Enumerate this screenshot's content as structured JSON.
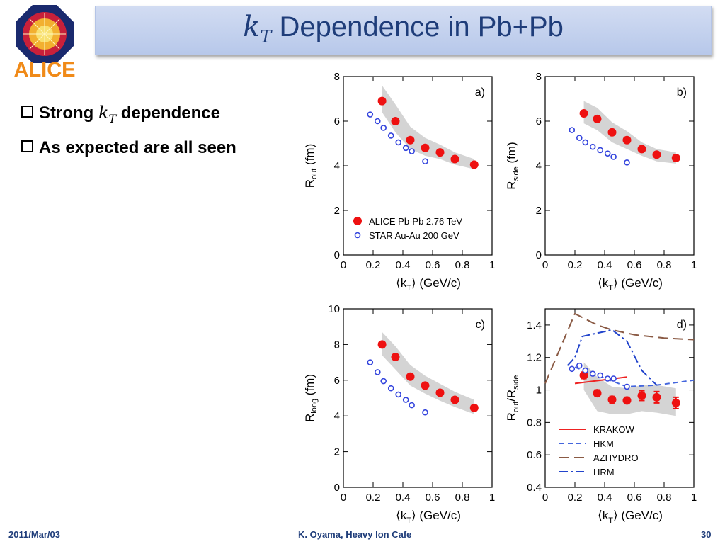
{
  "slide": {
    "title_var": "k",
    "title_sub": "T",
    "title_rest": " Dependence in Pb+Pb",
    "logo_text": "ALICE",
    "bullets": [
      {
        "pre": "Strong ",
        "var": "k",
        "sub": "T",
        "post": " dependence"
      },
      {
        "pre": "As expected are all seen",
        "var": "",
        "sub": "",
        "post": ""
      }
    ],
    "footer": {
      "date": "2011/Mar/03",
      "author": "K. Oyama, Heavy Ion Cafe",
      "page": "30"
    }
  },
  "chart_data": [
    {
      "type": "scatter",
      "panel": "a)",
      "ylabel": "R_out (fm)",
      "xlabel": "⟨k_T⟩ (GeV/c)",
      "xlim": [
        0,
        1
      ],
      "ylim": [
        0,
        8
      ],
      "x_ticks": [
        "0",
        "0.2",
        "0.4",
        "0.6",
        "0.8",
        "1"
      ],
      "y_ticks": [
        "0",
        "2",
        "4",
        "6",
        "8"
      ],
      "series": [
        {
          "name": "ALICE Pb-Pb 2.76 TeV",
          "marker": "filled-circle",
          "color": "#ee1111",
          "x": [
            0.26,
            0.35,
            0.45,
            0.55,
            0.65,
            0.75,
            0.88
          ],
          "y": [
            6.9,
            6.0,
            5.15,
            4.8,
            4.6,
            4.3,
            4.05
          ]
        },
        {
          "name": "STAR Au-Au 200 GeV",
          "marker": "open-circle",
          "color": "#3344dd",
          "x": [
            0.18,
            0.23,
            0.27,
            0.32,
            0.37,
            0.42,
            0.46,
            0.55
          ],
          "y": [
            6.3,
            6.0,
            5.7,
            5.35,
            5.05,
            4.8,
            4.65,
            4.2
          ]
        }
      ],
      "band": {
        "x": [
          0.26,
          0.35,
          0.45,
          0.55,
          0.65,
          0.75,
          0.88
        ],
        "lo": [
          6.4,
          5.5,
          4.75,
          4.45,
          4.3,
          4.05,
          3.85
        ],
        "hi": [
          7.6,
          6.75,
          5.75,
          5.25,
          4.95,
          4.6,
          4.3
        ]
      },
      "legend": "bottom-right"
    },
    {
      "type": "scatter",
      "panel": "b)",
      "ylabel": "R_side (fm)",
      "xlabel": "⟨k_T⟩ (GeV/c)",
      "xlim": [
        0,
        1
      ],
      "ylim": [
        0,
        8
      ],
      "x_ticks": [
        "0",
        "0.2",
        "0.4",
        "0.6",
        "0.8",
        "1"
      ],
      "y_ticks": [
        "0",
        "2",
        "4",
        "6",
        "8"
      ],
      "series": [
        {
          "name": "ALICE Pb-Pb 2.76 TeV",
          "marker": "filled-circle",
          "color": "#ee1111",
          "x": [
            0.26,
            0.35,
            0.45,
            0.55,
            0.65,
            0.75,
            0.88
          ],
          "y": [
            6.35,
            6.1,
            5.5,
            5.15,
            4.75,
            4.5,
            4.35
          ]
        },
        {
          "name": "STAR Au-Au 200 GeV",
          "marker": "open-circle",
          "color": "#3344dd",
          "x": [
            0.18,
            0.23,
            0.27,
            0.32,
            0.37,
            0.42,
            0.46,
            0.55
          ],
          "y": [
            5.6,
            5.25,
            5.05,
            4.85,
            4.7,
            4.55,
            4.4,
            4.15
          ]
        }
      ],
      "band": {
        "x": [
          0.26,
          0.35,
          0.45,
          0.55,
          0.65,
          0.75,
          0.88
        ],
        "lo": [
          5.9,
          5.6,
          5.05,
          4.75,
          4.45,
          4.2,
          4.1
        ],
        "hi": [
          6.9,
          6.6,
          5.95,
          5.55,
          5.05,
          4.75,
          4.6
        ]
      }
    },
    {
      "type": "scatter",
      "panel": "c)",
      "ylabel": "R_long (fm)",
      "xlabel": "⟨k_T⟩ (GeV/c)",
      "xlim": [
        0,
        1
      ],
      "ylim": [
        0,
        10
      ],
      "x_ticks": [
        "0",
        "0.2",
        "0.4",
        "0.6",
        "0.8",
        "1"
      ],
      "y_ticks": [
        "0",
        "2",
        "4",
        "6",
        "8",
        "10"
      ],
      "series": [
        {
          "name": "ALICE Pb-Pb 2.76 TeV",
          "marker": "filled-circle",
          "color": "#ee1111",
          "x": [
            0.26,
            0.35,
            0.45,
            0.55,
            0.65,
            0.75,
            0.88
          ],
          "y": [
            8.0,
            7.3,
            6.2,
            5.7,
            5.3,
            4.9,
            4.45
          ]
        },
        {
          "name": "STAR Au-Au 200 GeV",
          "marker": "open-circle",
          "color": "#3344dd",
          "x": [
            0.18,
            0.23,
            0.27,
            0.32,
            0.37,
            0.42,
            0.46,
            0.55
          ],
          "y": [
            7.0,
            6.45,
            5.95,
            5.55,
            5.2,
            4.9,
            4.6,
            4.2
          ]
        }
      ],
      "band": {
        "x": [
          0.26,
          0.35,
          0.45,
          0.55,
          0.65,
          0.75,
          0.88
        ],
        "lo": [
          7.4,
          6.6,
          5.7,
          5.25,
          4.85,
          4.5,
          4.1
        ],
        "hi": [
          8.7,
          7.9,
          6.85,
          6.25,
          5.8,
          5.35,
          4.9
        ]
      }
    },
    {
      "type": "line",
      "panel": "d)",
      "ylabel": "R_out/R_side",
      "xlabel": "⟨k_T⟩ (GeV/c)",
      "xlim": [
        0,
        1
      ],
      "ylim": [
        0.4,
        1.5
      ],
      "x_ticks": [
        "0",
        "0.2",
        "0.4",
        "0.6",
        "0.8",
        "1"
      ],
      "y_ticks": [
        "0.4",
        "0.6",
        "0.8",
        "1",
        "1.2",
        "1.4"
      ],
      "series": [
        {
          "name": "ALICE",
          "marker": "filled-circle",
          "color": "#ee1111",
          "x": [
            0.26,
            0.35,
            0.45,
            0.55,
            0.65,
            0.75,
            0.88
          ],
          "y": [
            1.09,
            0.98,
            0.94,
            0.935,
            0.965,
            0.955,
            0.92
          ],
          "err": [
            0.02,
            0.02,
            0.02,
            0.02,
            0.03,
            0.035,
            0.035
          ]
        },
        {
          "name": "STAR",
          "marker": "open-circle",
          "color": "#3344dd",
          "x": [
            0.18,
            0.23,
            0.27,
            0.32,
            0.37,
            0.42,
            0.46,
            0.55
          ],
          "y": [
            1.13,
            1.15,
            1.12,
            1.1,
            1.09,
            1.07,
            1.07,
            1.02
          ]
        },
        {
          "name": "KRAKOW",
          "style": "solid",
          "color": "#ee2222",
          "x": [
            0.2,
            0.55
          ],
          "y": [
            1.04,
            1.08
          ]
        },
        {
          "name": "HKM",
          "style": "dashed",
          "color": "#4466dd",
          "x": [
            0.2,
            0.35,
            0.55,
            0.75,
            1.0
          ],
          "y": [
            1.14,
            1.09,
            1.02,
            1.03,
            1.06
          ]
        },
        {
          "name": "AZHYDRO",
          "style": "longdash",
          "color": "#8a5a44",
          "x": [
            0.0,
            0.2,
            0.35,
            0.45,
            0.6,
            0.8,
            1.0
          ],
          "y": [
            1.04,
            1.47,
            1.4,
            1.37,
            1.34,
            1.32,
            1.31
          ]
        },
        {
          "name": "HRM",
          "style": "dashdot",
          "color": "#2244cc",
          "x": [
            0.15,
            0.2,
            0.25,
            0.35,
            0.45,
            0.55,
            0.65,
            0.75
          ],
          "y": [
            1.15,
            1.2,
            1.33,
            1.35,
            1.37,
            1.3,
            1.12,
            1.03
          ]
        }
      ],
      "band": {
        "x": [
          0.26,
          0.35,
          0.45,
          0.55,
          0.65,
          0.75,
          0.88
        ],
        "lo": [
          1.0,
          0.87,
          0.85,
          0.85,
          0.87,
          0.86,
          0.84
        ],
        "hi": [
          1.17,
          1.08,
          1.02,
          1.01,
          1.03,
          1.03,
          1.01
        ]
      },
      "legend": "bottom-left"
    }
  ]
}
